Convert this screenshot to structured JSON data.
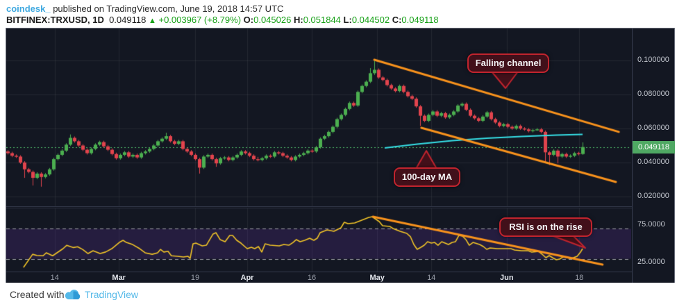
{
  "header": {
    "credit": "coindesk_",
    "published": " published on TradingView.com, June 19, 2018 14:57 UTC",
    "symbol": "BITFINEX:TRXUSD, 1D",
    "last_price": "0.049118",
    "arrow": "▲",
    "change": "+0.003967 (+8.79%)",
    "o_label": "O:",
    "o_value": "0.045026",
    "h_label": "H:",
    "h_value": "0.051844",
    "l_label": "L:",
    "l_value": "0.044502",
    "c_label": "C:",
    "c_value": "0.049118"
  },
  "annotations": {
    "falling_channel": "Falling channel",
    "ma": "100-day MA",
    "rsi": "RSI is on the rise"
  },
  "footer": {
    "created_with": "Created with",
    "brand": "TradingView"
  },
  "colors": {
    "up": "#4caf50",
    "down": "#e2444d",
    "orange": "#f8921c",
    "ma_cyan": "#36dfe6",
    "rsi_yellow": "#f2c527",
    "badge": "#4fa863",
    "grid": "rgba(255,255,255,0.07)",
    "pane_bg": "#131722",
    "band_fill": "rgba(120,60,200,0.18)",
    "dashed": "rgba(255,255,255,0.6)",
    "price_line": "#4fbf6b"
  },
  "chart_data": {
    "type": "candlestick+rsi",
    "title": "BITFINEX:TRXUSD 1D with 100-day MA, falling channel and RSI",
    "price_unit": 0.001,
    "price_axis": {
      "ticks": [
        {
          "value": 100,
          "label": "0.100000"
        },
        {
          "value": 80,
          "label": "0.080000"
        },
        {
          "value": 60,
          "label": "0.060000"
        },
        {
          "value": 40,
          "label": "0.040000"
        },
        {
          "value": 20,
          "label": "0.020000"
        }
      ],
      "last_price": 49.118,
      "last_price_label": "0.049118"
    },
    "rsi_axis": {
      "ticks": [
        {
          "value": 75,
          "label": "75.0000"
        },
        {
          "value": 25,
          "label": "25.0000"
        }
      ],
      "band": [
        30,
        70
      ],
      "range": [
        0,
        100
      ]
    },
    "time_axis": [
      {
        "i": 11.3,
        "label": "14",
        "bold": false
      },
      {
        "i": 26.7,
        "label": "Mar",
        "bold": true
      },
      {
        "i": 45.0,
        "label": "19",
        "bold": false
      },
      {
        "i": 57.5,
        "label": "Apr",
        "bold": true
      },
      {
        "i": 73.0,
        "label": "16",
        "bold": false
      },
      {
        "i": 88.7,
        "label": "May",
        "bold": true
      },
      {
        "i": 101.7,
        "label": "14",
        "bold": false
      },
      {
        "i": 119.8,
        "label": "Jun",
        "bold": true
      },
      {
        "i": 137.2,
        "label": "18",
        "bold": false
      }
    ],
    "candles": [
      [
        46.5,
        47.3,
        44.7,
        45.5
      ],
      [
        45.5,
        46.3,
        43.2,
        44
      ],
      [
        44,
        44.8,
        42.7,
        43.5
      ],
      [
        43.5,
        44.3,
        39.2,
        40
      ],
      [
        40,
        40.8,
        31,
        36
      ],
      [
        36,
        36.8,
        33.7,
        34.5
      ],
      [
        34.5,
        35.3,
        26.5,
        31
      ],
      [
        31,
        34.3,
        30.2,
        33.5
      ],
      [
        33.5,
        34.3,
        25.8,
        31.5
      ],
      [
        31.5,
        33.8,
        30.7,
        33
      ],
      [
        33,
        36.8,
        32.2,
        36
      ],
      [
        36,
        42.8,
        35.2,
        42
      ],
      [
        42,
        45.3,
        41.2,
        44.5
      ],
      [
        44.5,
        47.8,
        43.7,
        47
      ],
      [
        47,
        51.3,
        46.2,
        50.5
      ],
      [
        50.5,
        56.5,
        49.7,
        54.5
      ],
      [
        54.5,
        55.3,
        51.7,
        52.5
      ],
      [
        52.5,
        53.3,
        49.2,
        50
      ],
      [
        50,
        50.8,
        46.7,
        47.5
      ],
      [
        47.5,
        48.3,
        44.7,
        45.5
      ],
      [
        45.5,
        48.8,
        44.7,
        48
      ],
      [
        48,
        51.3,
        47.2,
        50.5
      ],
      [
        50.5,
        52.8,
        49.7,
        52
      ],
      [
        52,
        52.8,
        48.7,
        49.5
      ],
      [
        49.5,
        50.3,
        46.7,
        47.5
      ],
      [
        47.5,
        48.3,
        44.2,
        45
      ],
      [
        45,
        45.8,
        41.7,
        42.5
      ],
      [
        42.5,
        45.3,
        41.7,
        44.5
      ],
      [
        44.5,
        46.8,
        43.7,
        46
      ],
      [
        46,
        46.8,
        42.7,
        43.5
      ],
      [
        43.5,
        45.3,
        42.7,
        44.5
      ],
      [
        44.5,
        45.3,
        42.2,
        43
      ],
      [
        43,
        46.3,
        42.2,
        45.5
      ],
      [
        45.5,
        47.3,
        44.7,
        46.5
      ],
      [
        46.5,
        48.8,
        45.7,
        48
      ],
      [
        48,
        50.8,
        47.2,
        50
      ],
      [
        50,
        53.3,
        49.2,
        52.5
      ],
      [
        52.5,
        54.8,
        51.7,
        54
      ],
      [
        54,
        57.5,
        53.2,
        55.5
      ],
      [
        55.5,
        56.3,
        51.7,
        52.5
      ],
      [
        52.5,
        53.3,
        50.2,
        51
      ],
      [
        51,
        53.3,
        50.2,
        52.5
      ],
      [
        52.5,
        53.3,
        47.2,
        48
      ],
      [
        48,
        48.8,
        45.7,
        46.5
      ],
      [
        46.5,
        47.3,
        43.7,
        44.5
      ],
      [
        44.5,
        45.3,
        41.2,
        42
      ],
      [
        42,
        42.8,
        33.5,
        37
      ],
      [
        37,
        44.3,
        36.2,
        43.5
      ],
      [
        43.5,
        45.3,
        42.7,
        44.5
      ],
      [
        44.5,
        45.3,
        41.2,
        42
      ],
      [
        42,
        42.8,
        37.5,
        39.5
      ],
      [
        39.5,
        43.3,
        38.7,
        42.5
      ],
      [
        42.5,
        43.8,
        41.7,
        43
      ],
      [
        43,
        43.8,
        40.7,
        41.5
      ],
      [
        41.5,
        43.8,
        40.7,
        43
      ],
      [
        43,
        45.3,
        42.2,
        44.5
      ],
      [
        44.5,
        47.3,
        43.7,
        46.5
      ],
      [
        46.5,
        47.3,
        44.7,
        45.5
      ],
      [
        45.5,
        46.3,
        43.2,
        44
      ],
      [
        44,
        44.8,
        41.2,
        42
      ],
      [
        42,
        43.3,
        40.7,
        41.5
      ],
      [
        41.5,
        43.3,
        40.7,
        42.5
      ],
      [
        42.5,
        44.8,
        41.7,
        44
      ],
      [
        44,
        44.8,
        42.7,
        43.5
      ],
      [
        43.5,
        46.8,
        42.7,
        46
      ],
      [
        46,
        46.8,
        44.7,
        45.5
      ],
      [
        45.5,
        46.3,
        43.2,
        44
      ],
      [
        44,
        44.8,
        42.2,
        43
      ],
      [
        43,
        43.8,
        40.7,
        41.5
      ],
      [
        41.5,
        44.3,
        40.7,
        43.5
      ],
      [
        43.5,
        45.3,
        42.7,
        44.5
      ],
      [
        44.5,
        46.3,
        43.7,
        45.5
      ],
      [
        45.5,
        47.8,
        44.7,
        47
      ],
      [
        47,
        47.8,
        45.7,
        46.5
      ],
      [
        46.5,
        49.8,
        45.7,
        49
      ],
      [
        49,
        54.8,
        48.2,
        54
      ],
      [
        54,
        56.3,
        53.2,
        55.5
      ],
      [
        55.5,
        58.8,
        54.7,
        58
      ],
      [
        58,
        61.8,
        57.2,
        61
      ],
      [
        61,
        66.3,
        60.2,
        65.5
      ],
      [
        65.5,
        68.8,
        64.7,
        68
      ],
      [
        68,
        72.3,
        67.2,
        71.5
      ],
      [
        71.5,
        75.8,
        70.7,
        75
      ],
      [
        75,
        75.8,
        72.7,
        73.5
      ],
      [
        73.5,
        82.3,
        72.7,
        81.5
      ],
      [
        81.5,
        85.8,
        80.7,
        85
      ],
      [
        85,
        88.3,
        84.2,
        87.5
      ],
      [
        87.5,
        95.5,
        86.7,
        92.5
      ],
      [
        92.5,
        99.8,
        91.5,
        94.5
      ],
      [
        94.5,
        95.3,
        89.2,
        90
      ],
      [
        90,
        90.8,
        87.7,
        88.5
      ],
      [
        88.5,
        89.3,
        84.7,
        85.5
      ],
      [
        85.5,
        86.3,
        82.7,
        83.5
      ],
      [
        83.5,
        84.3,
        81.2,
        82
      ],
      [
        82,
        85.8,
        81.2,
        85
      ],
      [
        85,
        85.8,
        80.7,
        81.5
      ],
      [
        81.5,
        82.3,
        78.2,
        79
      ],
      [
        79,
        79.8,
        76.7,
        77.5
      ],
      [
        77.5,
        78.3,
        72.2,
        73
      ],
      [
        73,
        73.8,
        61.5,
        67.5
      ],
      [
        67.5,
        68.3,
        63.7,
        64.5
      ],
      [
        64.5,
        68.8,
        63.7,
        68
      ],
      [
        68,
        70.8,
        67.2,
        70
      ],
      [
        70,
        70.8,
        66.7,
        67.5
      ],
      [
        67.5,
        69.8,
        66.7,
        69
      ],
      [
        69,
        69.8,
        65.7,
        66.5
      ],
      [
        66.5,
        68.8,
        65.7,
        68
      ],
      [
        68,
        70.8,
        67.2,
        70
      ],
      [
        70,
        74.3,
        69.2,
        73.5
      ],
      [
        73.5,
        75.3,
        72.7,
        74.5
      ],
      [
        74.5,
        75.3,
        70.2,
        71
      ],
      [
        71,
        71.8,
        66.7,
        67.5
      ],
      [
        67.5,
        68.3,
        65.2,
        66
      ],
      [
        66,
        66.8,
        63.7,
        64.5
      ],
      [
        64.5,
        67.8,
        63.7,
        67
      ],
      [
        67,
        70.3,
        66.2,
        69.5
      ],
      [
        69.5,
        70.3,
        64.7,
        65.5
      ],
      [
        65.5,
        66.3,
        62.7,
        63.5
      ],
      [
        63.5,
        64.3,
        60.7,
        61.5
      ],
      [
        61.5,
        63.3,
        60.7,
        62.5
      ],
      [
        62.5,
        63.3,
        60.2,
        61
      ],
      [
        61,
        61.8,
        59.2,
        60
      ],
      [
        60,
        62.3,
        59.2,
        61.5
      ],
      [
        61.5,
        62.3,
        59.2,
        60
      ],
      [
        60,
        60.8,
        58.7,
        59.5
      ],
      [
        59.5,
        60.3,
        57.7,
        58.5
      ],
      [
        58.5,
        59.8,
        57.7,
        59
      ],
      [
        59,
        60.3,
        58.7,
        59.5
      ],
      [
        59.5,
        60.3,
        57.2,
        58
      ],
      [
        58,
        58.8,
        40.5,
        46
      ],
      [
        46,
        46.8,
        38.5,
        44.5
      ],
      [
        44.5,
        47.8,
        43.7,
        47
      ],
      [
        47,
        47.8,
        39.5,
        43.5
      ],
      [
        43.5,
        45.8,
        42.7,
        45
      ],
      [
        45,
        45.8,
        42.7,
        43.5
      ],
      [
        43.5,
        44.8,
        42.7,
        44
      ],
      [
        44,
        46.3,
        43.2,
        45.5
      ],
      [
        45.5,
        46.3,
        44.2,
        45
      ],
      [
        45.026,
        51.844,
        44.502,
        49.118
      ]
    ],
    "ma_points": [
      [
        90.5,
        48.6
      ],
      [
        98.3,
        50.8
      ],
      [
        106.7,
        52.9
      ],
      [
        115,
        54.3
      ],
      [
        123.3,
        55.3
      ],
      [
        131.7,
        56.1
      ],
      [
        138,
        56.5
      ]
    ],
    "channel_upper": [
      [
        88,
        100.4
      ],
      [
        146.7,
        58
      ]
    ],
    "channel_lower": [
      [
        99.3,
        60.4
      ],
      [
        146,
        28.6
      ]
    ],
    "rsi_trendline": [
      [
        87.7,
        86.1
      ],
      [
        142.8,
        22.2
      ]
    ],
    "rsi_points": [
      [
        3.8,
        18.5
      ],
      [
        6,
        36
      ],
      [
        7,
        34.5
      ],
      [
        8.5,
        34
      ],
      [
        9.3,
        38
      ],
      [
        10.8,
        34
      ],
      [
        13.3,
        43.5
      ],
      [
        14.2,
        48
      ],
      [
        15.8,
        45
      ],
      [
        16.8,
        46
      ],
      [
        18,
        42.5
      ],
      [
        19.3,
        37
      ],
      [
        20.5,
        40.7
      ],
      [
        22.2,
        37
      ],
      [
        23.5,
        39
      ],
      [
        25,
        43.5
      ],
      [
        26.8,
        51.8
      ],
      [
        27.7,
        54.6
      ],
      [
        28.5,
        51.8
      ],
      [
        30,
        49
      ],
      [
        31.7,
        43.5
      ],
      [
        33,
        38
      ],
      [
        34.7,
        36
      ],
      [
        36,
        38
      ],
      [
        36.7,
        42.5
      ],
      [
        37.5,
        39
      ],
      [
        38.5,
        40
      ],
      [
        39.3,
        34
      ],
      [
        40.8,
        33.3
      ],
      [
        42.2,
        32.4
      ],
      [
        43.3,
        33.3
      ],
      [
        43.8,
        30.5
      ],
      [
        44.5,
        50
      ],
      [
        45.2,
        50.9
      ],
      [
        46.7,
        47.2
      ],
      [
        47.7,
        48.1
      ],
      [
        49.3,
        63
      ],
      [
        50,
        64.8
      ],
      [
        51,
        55.6
      ],
      [
        52.2,
        52.8
      ],
      [
        53.3,
        61.1
      ],
      [
        54,
        61.1
      ],
      [
        55,
        54.6
      ],
      [
        56,
        50.9
      ],
      [
        57.5,
        43.5
      ],
      [
        58.5,
        45.4
      ],
      [
        59.3,
        43.5
      ],
      [
        60.2,
        46.3
      ],
      [
        61,
        39
      ],
      [
        61.8,
        50
      ],
      [
        63,
        48.1
      ],
      [
        65.2,
        47.2
      ],
      [
        66.3,
        49.1
      ],
      [
        67.5,
        48.1
      ],
      [
        68.5,
        51.8
      ],
      [
        69.3,
        55.6
      ],
      [
        70.2,
        52.8
      ],
      [
        71.3,
        54.6
      ],
      [
        72.5,
        57.4
      ],
      [
        73.5,
        54.6
      ],
      [
        74.3,
        57.4
      ],
      [
        75,
        64.8
      ],
      [
        76.7,
        68.5
      ],
      [
        78.3,
        66.7
      ],
      [
        80,
        71.3
      ],
      [
        80.8,
        78.7
      ],
      [
        81.7,
        76.9
      ],
      [
        83.3,
        77.8
      ],
      [
        85,
        81.5
      ],
      [
        86.7,
        85.2
      ],
      [
        87.5,
        86.1
      ],
      [
        89.2,
        79.6
      ],
      [
        90,
        74.1
      ],
      [
        91.7,
        73.2
      ],
      [
        92.5,
        70.4
      ],
      [
        94.2,
        66.7
      ],
      [
        95.8,
        63.9
      ],
      [
        96.7,
        59.3
      ],
      [
        97.5,
        49.1
      ],
      [
        98.3,
        42.6
      ],
      [
        99.2,
        45.4
      ],
      [
        100,
        48.1
      ],
      [
        100.8,
        52.8
      ],
      [
        101.7,
        50.9
      ],
      [
        102.5,
        51.8
      ],
      [
        103.3,
        48.1
      ],
      [
        104.2,
        52.8
      ],
      [
        105,
        50.9
      ],
      [
        105.8,
        49.1
      ],
      [
        106.7,
        51.8
      ],
      [
        107.5,
        52.8
      ],
      [
        108.3,
        61.1
      ],
      [
        109.2,
        60.2
      ],
      [
        110,
        55.6
      ],
      [
        110.8,
        48.1
      ],
      [
        111.7,
        51.8
      ],
      [
        113.3,
        49.1
      ],
      [
        114.2,
        46.3
      ],
      [
        115,
        42.6
      ],
      [
        115.8,
        44.4
      ],
      [
        117.5,
        43.5
      ],
      [
        119.2,
        43.5
      ],
      [
        120.8,
        43.5
      ],
      [
        121.7,
        41.7
      ],
      [
        123.3,
        40.7
      ],
      [
        125,
        40.7
      ],
      [
        125.8,
        38.9
      ],
      [
        127.5,
        39.8
      ],
      [
        128.3,
        36.1
      ],
      [
        129.2,
        31.5
      ],
      [
        130,
        34.3
      ],
      [
        130.8,
        31.5
      ],
      [
        131.7,
        28.7
      ],
      [
        132.5,
        29.6
      ],
      [
        133.3,
        32.4
      ],
      [
        134.2,
        31.5
      ],
      [
        135,
        30.6
      ],
      [
        135.8,
        31.5
      ],
      [
        136.7,
        33.3
      ],
      [
        137.5,
        38.9
      ],
      [
        138,
        43.5
      ]
    ]
  }
}
